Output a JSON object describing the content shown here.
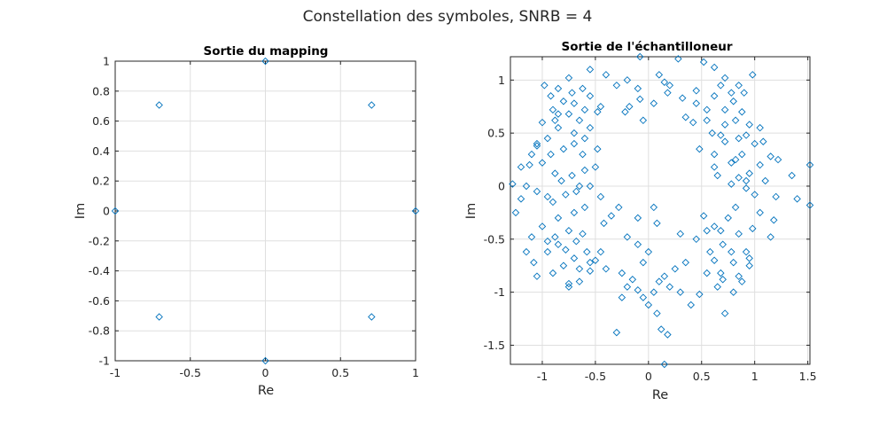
{
  "figure": {
    "title": "Constellation des symboles, SNRB = 4"
  },
  "colors": {
    "marker": "#0072bd",
    "axis": "#262626",
    "grid": "#dfdfdf",
    "background": "#ffffff"
  },
  "chart_data": [
    {
      "type": "scatter",
      "title": "Sortie du mapping",
      "xlabel": "Re",
      "ylabel": "Im",
      "xlim": [
        -1,
        1
      ],
      "ylim": [
        -1,
        1
      ],
      "xticks": [
        -1,
        -0.5,
        0,
        0.5,
        1
      ],
      "xtick_labels": [
        "-1",
        "-0.5",
        "0",
        "0.5",
        "1"
      ],
      "yticks": [
        -1,
        -0.8,
        -0.6,
        -0.4,
        -0.2,
        0,
        0.2,
        0.4,
        0.6,
        0.8,
        1
      ],
      "ytick_labels": [
        "-1",
        "-0.8",
        "-0.6",
        "-0.4",
        "-0.2",
        "0",
        "0.2",
        "0.4",
        "0.6",
        "0.8",
        "1"
      ],
      "grid": true,
      "marker": "diamond",
      "points": [
        [
          0,
          1
        ],
        [
          0.707,
          0.707
        ],
        [
          1,
          0
        ],
        [
          0.707,
          -0.707
        ],
        [
          0,
          -1
        ],
        [
          -0.707,
          -0.707
        ],
        [
          -1,
          0
        ],
        [
          -0.707,
          0.707
        ]
      ]
    },
    {
      "type": "scatter",
      "title": "Sortie de l'échantilloneur",
      "xlabel": "Re",
      "ylabel": "Im",
      "xlim": [
        -1.3,
        1.52
      ],
      "ylim": [
        -1.68,
        1.22
      ],
      "xticks": [
        -1,
        -0.5,
        0,
        0.5,
        1,
        1.5
      ],
      "xtick_labels": [
        "-1",
        "-0.5",
        "0",
        "0.5",
        "1",
        "1.5"
      ],
      "yticks": [
        -1.5,
        -1,
        -0.5,
        0,
        0.5,
        1
      ],
      "ytick_labels": [
        "-1.5",
        "-1",
        "-0.5",
        "0",
        "0.5",
        "1"
      ],
      "grid": true,
      "marker": "diamond",
      "points": [
        [
          -0.08,
          1.22
        ],
        [
          0.28,
          1.2
        ],
        [
          0.52,
          1.17
        ],
        [
          0.62,
          1.12
        ],
        [
          0.98,
          1.05
        ],
        [
          0.72,
          1.02
        ],
        [
          0.85,
          0.95
        ],
        [
          0.9,
          0.88
        ],
        [
          0.45,
          0.9
        ],
        [
          0.62,
          0.85
        ],
        [
          0.8,
          0.8
        ],
        [
          0.72,
          0.72
        ],
        [
          0.88,
          0.7
        ],
        [
          0.35,
          0.65
        ],
        [
          0.42,
          0.6
        ],
        [
          0.55,
          0.62
        ],
        [
          0.95,
          0.58
        ],
        [
          1.05,
          0.55
        ],
        [
          0.6,
          0.5
        ],
        [
          0.85,
          0.45
        ],
        [
          0.72,
          0.42
        ],
        [
          1.0,
          0.4
        ],
        [
          0.48,
          0.35
        ],
        [
          0.62,
          0.3
        ],
        [
          0.88,
          0.3
        ],
        [
          1.15,
          0.28
        ],
        [
          0.78,
          0.22
        ],
        [
          1.05,
          0.2
        ],
        [
          1.22,
          0.25
        ],
        [
          0.95,
          0.12
        ],
        [
          0.85,
          0.08
        ],
        [
          1.1,
          0.05
        ],
        [
          0.65,
          0.1
        ],
        [
          1.52,
          0.2
        ],
        [
          1.35,
          0.1
        ],
        [
          0.92,
          -0.02
        ],
        [
          1.0,
          -0.08
        ],
        [
          1.2,
          -0.1
        ],
        [
          1.4,
          -0.12
        ],
        [
          1.52,
          -0.18
        ],
        [
          0.82,
          -0.2
        ],
        [
          1.05,
          -0.25
        ],
        [
          1.18,
          -0.32
        ],
        [
          0.98,
          -0.4
        ],
        [
          0.85,
          -0.45
        ],
        [
          1.15,
          -0.48
        ],
        [
          0.7,
          -0.55
        ],
        [
          0.92,
          -0.62
        ],
        [
          0.62,
          -0.7
        ],
        [
          0.8,
          -0.72
        ],
        [
          0.95,
          -0.75
        ],
        [
          0.55,
          -0.82
        ],
        [
          0.7,
          -0.88
        ],
        [
          0.88,
          -0.9
        ],
        [
          0.65,
          -0.95
        ],
        [
          0.8,
          -1.0
        ],
        [
          0.48,
          -1.02
        ],
        [
          0.3,
          -1.0
        ],
        [
          0.4,
          -1.12
        ],
        [
          0.72,
          -1.2
        ],
        [
          0.2,
          -0.95
        ],
        [
          0.15,
          -0.85
        ],
        [
          0.25,
          -0.78
        ],
        [
          0.35,
          -0.72
        ],
        [
          0.1,
          -0.9
        ],
        [
          0.05,
          -1.0
        ],
        [
          -0.05,
          -1.05
        ],
        [
          0.0,
          -1.12
        ],
        [
          0.08,
          -1.2
        ],
        [
          -0.1,
          -0.98
        ],
        [
          -0.15,
          -0.88
        ],
        [
          -0.2,
          -0.95
        ],
        [
          -0.25,
          -0.82
        ],
        [
          0.12,
          -1.35
        ],
        [
          0.18,
          -1.4
        ],
        [
          0.15,
          -1.68
        ],
        [
          -0.3,
          -1.38
        ],
        [
          -0.25,
          -1.05
        ],
        [
          -0.05,
          -0.72
        ],
        [
          0.0,
          -0.62
        ],
        [
          0.45,
          -0.5
        ],
        [
          0.55,
          -0.42
        ],
        [
          0.62,
          -0.38
        ],
        [
          0.3,
          -0.45
        ],
        [
          0.08,
          -0.35
        ],
        [
          -0.1,
          -0.55
        ],
        [
          -0.58,
          -0.62
        ],
        [
          -0.7,
          -0.68
        ],
        [
          -0.8,
          -0.75
        ],
        [
          -0.9,
          -0.82
        ],
        [
          -0.65,
          -0.9
        ],
        [
          -0.75,
          -0.92
        ],
        [
          -0.55,
          -0.72
        ],
        [
          -0.5,
          -0.7
        ],
        [
          -0.62,
          -0.45
        ],
        [
          -0.75,
          -0.42
        ],
        [
          -0.85,
          -0.55
        ],
        [
          -0.95,
          -0.52
        ],
        [
          -1.0,
          -0.38
        ],
        [
          -1.1,
          -0.48
        ],
        [
          -1.15,
          -0.62
        ],
        [
          -1.08,
          -0.72
        ],
        [
          -1.05,
          -0.85
        ],
        [
          -0.85,
          -0.3
        ],
        [
          -0.7,
          -0.25
        ],
        [
          -0.6,
          -0.2
        ],
        [
          -0.9,
          -0.15
        ],
        [
          -0.78,
          -0.08
        ],
        [
          -0.95,
          -0.1
        ],
        [
          -1.05,
          -0.05
        ],
        [
          -1.2,
          -0.12
        ],
        [
          -1.25,
          -0.25
        ],
        [
          -1.28,
          0.02
        ],
        [
          -1.15,
          0.0
        ],
        [
          -0.82,
          0.05
        ],
        [
          -0.72,
          0.1
        ],
        [
          -0.65,
          0.0
        ],
        [
          -0.88,
          0.12
        ],
        [
          -1.0,
          0.22
        ],
        [
          -1.12,
          0.2
        ],
        [
          -1.2,
          0.18
        ],
        [
          -0.92,
          0.3
        ],
        [
          -0.8,
          0.35
        ],
        [
          -1.05,
          0.38
        ],
        [
          -0.95,
          0.45
        ],
        [
          -0.85,
          0.55
        ],
        [
          -0.7,
          0.5
        ],
        [
          -0.6,
          0.45
        ],
        [
          -0.55,
          0.55
        ],
        [
          -1.05,
          0.4
        ],
        [
          -0.88,
          0.62
        ],
        [
          -0.75,
          0.68
        ],
        [
          -0.65,
          0.62
        ],
        [
          -0.9,
          0.72
        ],
        [
          -0.8,
          0.8
        ],
        [
          -0.7,
          0.78
        ],
        [
          -0.6,
          0.72
        ],
        [
          -0.48,
          0.7
        ],
        [
          -0.45,
          0.75
        ],
        [
          -0.55,
          0.85
        ],
        [
          -0.62,
          0.92
        ],
        [
          -0.72,
          0.88
        ],
        [
          -0.85,
          0.92
        ],
        [
          -0.98,
          0.95
        ],
        [
          -0.92,
          0.85
        ],
        [
          -0.75,
          1.02
        ],
        [
          -0.55,
          1.1
        ],
        [
          -0.4,
          1.05
        ],
        [
          -0.2,
          1.0
        ],
        [
          -0.3,
          0.95
        ],
        [
          -0.1,
          0.92
        ],
        [
          0.1,
          1.05
        ],
        [
          0.15,
          0.98
        ],
        [
          0.2,
          0.95
        ],
        [
          -0.08,
          0.82
        ],
        [
          -0.18,
          0.75
        ],
        [
          -0.22,
          0.7
        ],
        [
          -0.05,
          0.62
        ],
        [
          0.05,
          0.78
        ],
        [
          0.18,
          0.88
        ],
        [
          0.32,
          0.83
        ],
        [
          0.45,
          0.78
        ],
        [
          -0.62,
          0.3
        ],
        [
          -0.48,
          0.35
        ],
        [
          -0.5,
          0.18
        ],
        [
          -0.55,
          0.0
        ],
        [
          -0.45,
          -0.1
        ],
        [
          -0.35,
          -0.28
        ],
        [
          -0.28,
          -0.2
        ],
        [
          -0.42,
          -0.35
        ],
        [
          -0.2,
          -0.48
        ],
        [
          -0.1,
          -0.3
        ],
        [
          0.05,
          -0.2
        ],
        [
          -1.1,
          0.3
        ],
        [
          -1.0,
          0.6
        ],
        [
          -0.85,
          0.68
        ],
        [
          -0.7,
          0.4
        ],
        [
          -0.6,
          0.15
        ],
        [
          -0.68,
          -0.05
        ],
        [
          -0.78,
          -0.6
        ],
        [
          -0.68,
          -0.52
        ],
        [
          -0.55,
          -0.8
        ],
        [
          -0.4,
          -0.78
        ],
        [
          -0.45,
          -0.62
        ],
        [
          -0.65,
          -0.78
        ],
        [
          -0.75,
          -0.95
        ],
        [
          -0.95,
          -0.62
        ],
        [
          -0.88,
          -0.48
        ],
        [
          0.68,
          -0.42
        ],
        [
          0.75,
          -0.3
        ],
        [
          0.52,
          -0.28
        ],
        [
          0.58,
          -0.62
        ],
        [
          0.68,
          -0.82
        ],
        [
          0.78,
          -0.62
        ],
        [
          0.85,
          -0.85
        ],
        [
          0.95,
          -0.68
        ],
        [
          0.92,
          0.05
        ],
        [
          0.78,
          0.02
        ],
        [
          0.72,
          0.58
        ],
        [
          0.68,
          0.48
        ],
        [
          0.92,
          0.48
        ],
        [
          1.08,
          0.42
        ],
        [
          0.82,
          0.25
        ],
        [
          0.62,
          0.18
        ],
        [
          0.55,
          0.72
        ],
        [
          0.82,
          0.62
        ],
        [
          0.68,
          0.95
        ],
        [
          0.78,
          0.88
        ]
      ]
    }
  ]
}
